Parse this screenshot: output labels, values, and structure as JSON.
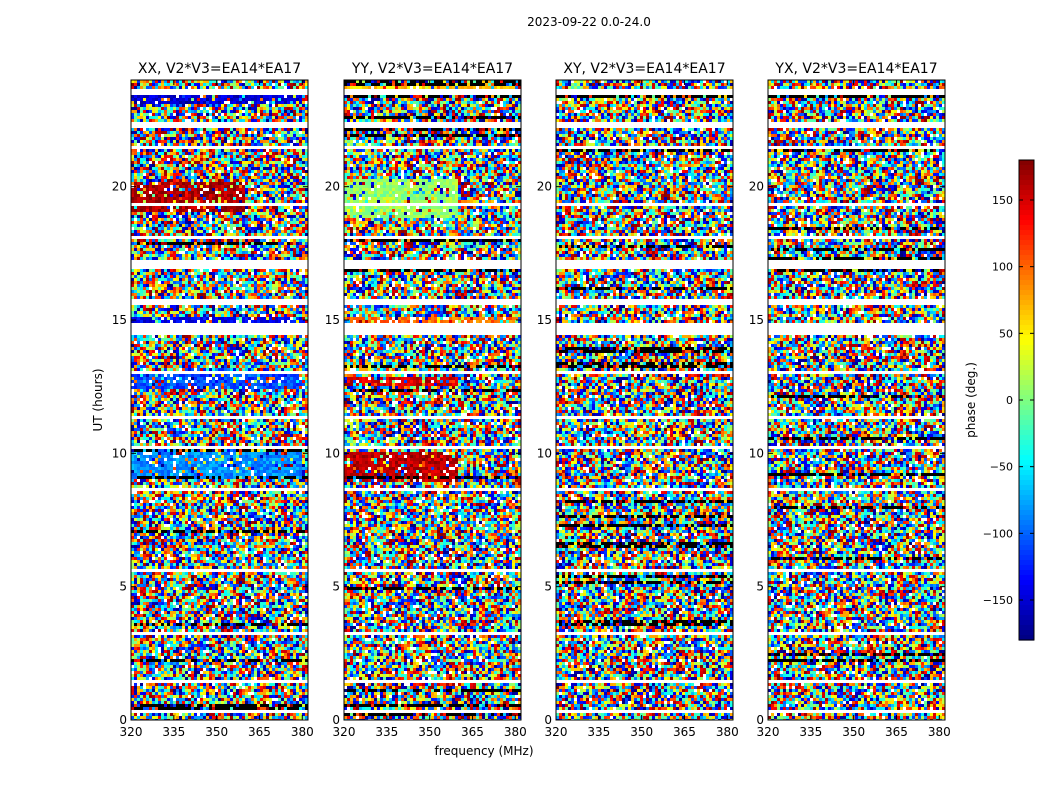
{
  "chart_data": {
    "type": "heatmap",
    "title": "2023-09-22 0.0-24.0",
    "xlabel": "frequency (MHz)",
    "ylabel": "UT (hours)",
    "xlim": [
      320,
      382
    ],
    "ylim": [
      0,
      24
    ],
    "xticks": [
      320,
      335,
      350,
      365,
      380
    ],
    "yticks": [
      0,
      5,
      10,
      15,
      20
    ],
    "panels": [
      {
        "title": "XX, V2*V3=EA14*EA17",
        "product": "XX",
        "features": [
          {
            "y0": 19.0,
            "y1": 20.2,
            "phase": 165,
            "x1": 360
          },
          {
            "y0": 14.9,
            "y1": 15.1,
            "phase": -140,
            "x1": 380
          },
          {
            "y0": 12.4,
            "y1": 13.0,
            "phase": -110,
            "x1": 380
          },
          {
            "y0": 9.0,
            "y1": 10.1,
            "phase": -85,
            "x1": 380
          },
          {
            "y0": 23.1,
            "y1": 23.4,
            "phase": -150,
            "x1": 380
          }
        ]
      },
      {
        "title": "YY, V2*V3=EA14*EA17",
        "product": "YY",
        "features": [
          {
            "y0": 18.8,
            "y1": 20.3,
            "phase": 10,
            "x1": 360
          },
          {
            "y0": 14.9,
            "y1": 15.1,
            "phase": 95,
            "x1": 380
          },
          {
            "y0": 12.5,
            "y1": 12.9,
            "phase": 150,
            "x1": 360
          },
          {
            "y0": 8.9,
            "y1": 10.0,
            "phase": 160,
            "x1": 360
          },
          {
            "y0": 23.6,
            "y1": 23.8,
            "phase": 60,
            "x1": 380
          }
        ]
      },
      {
        "title": "XY, V2*V3=EA14*EA17",
        "product": "XY",
        "features": []
      },
      {
        "title": "YX, V2*V3=EA14*EA17",
        "product": "YX",
        "features": []
      }
    ],
    "gaps_hours": [
      [
        23.4,
        23.7
      ],
      [
        22.2,
        22.4
      ],
      [
        21.4,
        21.5
      ],
      [
        19.3,
        19.4
      ],
      [
        18.0,
        18.2
      ],
      [
        16.9,
        17.2
      ],
      [
        15.6,
        15.8
      ],
      [
        14.4,
        14.9
      ],
      [
        13.0,
        13.1
      ],
      [
        11.3,
        11.4
      ],
      [
        10.2,
        10.3
      ],
      [
        8.6,
        8.7
      ],
      [
        7.3,
        7.4
      ],
      [
        5.6,
        5.7
      ],
      [
        3.2,
        3.3
      ],
      [
        1.4,
        1.5
      ],
      [
        0.3,
        0.4
      ]
    ],
    "colorbar": {
      "label": "phase (deg.)",
      "range": [
        -180,
        180
      ],
      "ticks": [
        -150,
        -100,
        -50,
        0,
        50,
        100,
        150
      ],
      "tick_labels": [
        "−150",
        "−100",
        "−50",
        "0",
        "50",
        "100",
        "150"
      ],
      "colormap": "jet"
    }
  }
}
